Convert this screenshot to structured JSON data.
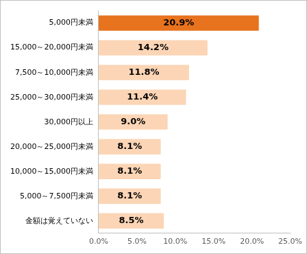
{
  "chart_data": {
    "type": "bar",
    "orientation": "horizontal",
    "categories": [
      "5,000円未満",
      "15,000～20,000円未満",
      "7,500～10,000円未満",
      "25,000～30,000円未満",
      "30,000円以上",
      "20,000～25,000円未満",
      "10,000～15,000円未満",
      "5,000～7,500円未満",
      "金額は覚えていない"
    ],
    "values": [
      20.9,
      14.2,
      11.8,
      11.4,
      9.0,
      8.1,
      8.1,
      8.1,
      8.5
    ],
    "value_labels": [
      "20.9%",
      "14.2%",
      "11.8%",
      "11.4%",
      "9.0%",
      "8.1%",
      "8.1%",
      "8.1%",
      "8.5%"
    ],
    "colors": [
      "#e8731f",
      "#fbd5b5",
      "#fbd5b5",
      "#fbd5b5",
      "#fbd5b5",
      "#fbd5b5",
      "#fbd5b5",
      "#fbd5b5",
      "#fbd5b5"
    ],
    "data_labels": true,
    "grid": false,
    "xlim": [
      0,
      25
    ],
    "xticks": [
      {
        "value": 0,
        "label": "0.0%"
      },
      {
        "value": 5,
        "label": "5.0%"
      },
      {
        "value": 10,
        "label": "10.0%"
      },
      {
        "value": 15,
        "label": "15.0%"
      },
      {
        "value": 20,
        "label": "20.0%"
      },
      {
        "value": 25,
        "label": "25.0%"
      }
    ]
  }
}
